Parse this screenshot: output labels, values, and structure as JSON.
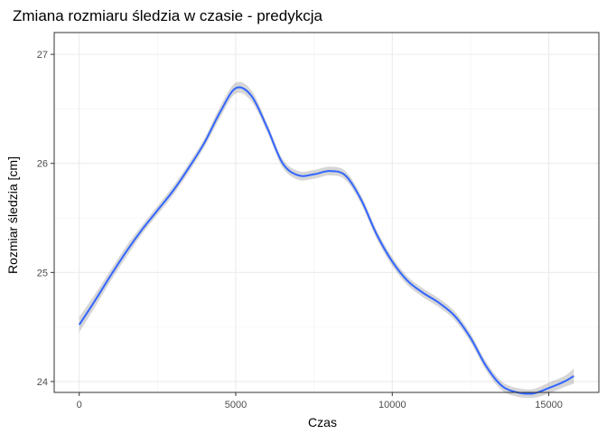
{
  "chart_data": {
    "type": "line",
    "title": "Zmiana rozmiaru śledzia w czasie - predykcja",
    "xlabel": "Czas",
    "ylabel": "Rozmiar śledzia [cm]",
    "xlim": [
      -800,
      16600
    ],
    "ylim": [
      23.9,
      27.2
    ],
    "x_ticks": [
      0,
      5000,
      10000,
      15000
    ],
    "x_tick_labels": [
      "0",
      "5000",
      "10000",
      "15000"
    ],
    "y_ticks": [
      24,
      25,
      26,
      27
    ],
    "y_tick_labels": [
      "24",
      "25",
      "26",
      "27"
    ],
    "grid": true,
    "confidence_band": true,
    "colors": {
      "line": "#3366ff",
      "band": "#999999",
      "border": "#333333"
    },
    "series": [
      {
        "x": [
          0,
          500,
          1000,
          1500,
          2000,
          2500,
          3000,
          3500,
          4000,
          4500,
          5000,
          5500,
          6000,
          6500,
          7000,
          7500,
          8000,
          8500,
          9000,
          9500,
          10000,
          10500,
          11000,
          11500,
          12000,
          12500,
          13000,
          13500,
          14000,
          14500,
          15000,
          15500,
          15800
        ],
        "y": [
          24.52,
          24.74,
          24.97,
          25.19,
          25.39,
          25.57,
          25.75,
          25.96,
          26.19,
          26.47,
          26.69,
          26.62,
          26.33,
          26.0,
          25.89,
          25.9,
          25.93,
          25.89,
          25.67,
          25.35,
          25.1,
          24.92,
          24.81,
          24.72,
          24.6,
          24.4,
          24.14,
          23.96,
          23.9,
          23.89,
          23.94,
          24.0,
          24.05
        ],
        "band": [
          0.07,
          0.06,
          0.05,
          0.05,
          0.04,
          0.04,
          0.04,
          0.04,
          0.04,
          0.05,
          0.05,
          0.05,
          0.04,
          0.04,
          0.04,
          0.04,
          0.04,
          0.04,
          0.04,
          0.04,
          0.04,
          0.04,
          0.04,
          0.04,
          0.04,
          0.04,
          0.04,
          0.04,
          0.04,
          0.04,
          0.05,
          0.05,
          0.07
        ]
      }
    ]
  }
}
